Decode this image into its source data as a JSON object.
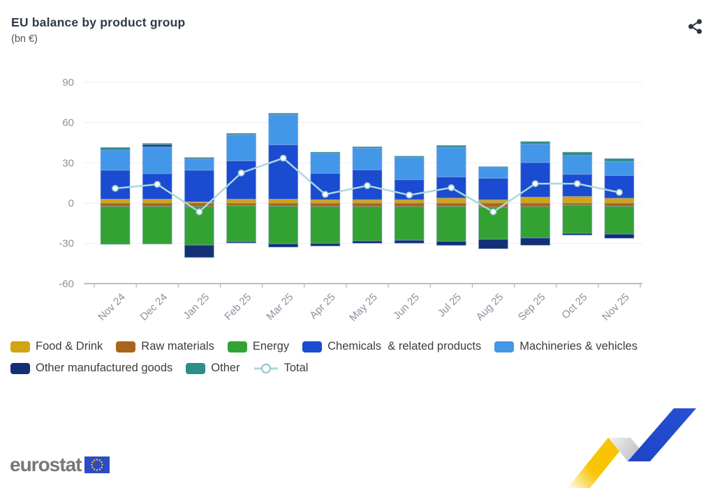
{
  "header": {
    "title": "EU balance by product group",
    "subtitle": "(bn €)"
  },
  "footer": {
    "logo_text": "eurostat"
  },
  "chart_data": {
    "type": "bar",
    "stacked": true,
    "title": "EU balance by product group",
    "ylabel": "bn €",
    "ylim": [
      -60,
      90
    ],
    "yticks": [
      90,
      60,
      30,
      0,
      -30,
      -60
    ],
    "grid": "horizontal",
    "legend_position": "bottom",
    "categories": [
      "Nov 24",
      "Dec 24",
      "Jan 25",
      "Feb 25",
      "Mar 25",
      "Apr 25",
      "May 25",
      "Jun 25",
      "Jul 25",
      "Aug 25",
      "Sep 25",
      "Oct 25",
      "Nov 25"
    ],
    "series": [
      {
        "name": "Food & Drink",
        "color": "#d2a412",
        "values": [
          3,
          3,
          1,
          3,
          3,
          2.6,
          2.6,
          2.6,
          3.8,
          2.5,
          4.5,
          5,
          3.7
        ]
      },
      {
        "name": "Raw materials",
        "color": "#aa651c",
        "values": [
          -2.5,
          -2.5,
          -2.5,
          -2,
          -2.3,
          -2.6,
          -2.6,
          -2.6,
          -2.5,
          -3,
          -2.6,
          -1.5,
          -2.4
        ]
      },
      {
        "name": "Energy",
        "color": "#34a233",
        "values": [
          -28.2,
          -28,
          -28.8,
          -26.7,
          -28,
          -27.4,
          -25.6,
          -25.1,
          -26,
          -24,
          -23.4,
          -21,
          -20.7
        ]
      },
      {
        "name": "Chemicals  & related products",
        "color": "#1a4bd1",
        "values": [
          21.5,
          19,
          23.5,
          28.5,
          40.5,
          19.6,
          22.2,
          14.9,
          15.7,
          16,
          25.7,
          16.5,
          16.9
        ]
      },
      {
        "name": "Machineries & vehicles",
        "color": "#4397e8",
        "values": [
          15,
          20,
          8.5,
          19.5,
          22.5,
          14.8,
          16.2,
          16.5,
          22,
          8,
          13.8,
          14,
          10.5
        ]
      },
      {
        "name": "Other manufactured goods",
        "color": "#133076",
        "values": [
          0,
          1.5,
          -9.2,
          -1,
          -2.5,
          -2,
          -1.7,
          -2.2,
          -3,
          -7,
          -5.4,
          -1.3,
          -3.1
        ]
      },
      {
        "name": "Other",
        "color": "#2d8d89",
        "values": [
          2,
          1,
          1,
          1,
          1,
          1,
          1,
          1,
          1.5,
          0.7,
          1.9,
          2.5,
          2.1
        ]
      }
    ],
    "line_series": {
      "name": "Total",
      "color": "#abd7dc",
      "marker_stroke": "#93c7cf",
      "values": [
        11,
        14,
        -6.5,
        22.5,
        33.5,
        6.5,
        13,
        6,
        11.5,
        -6.5,
        14.5,
        14.5,
        8
      ]
    },
    "colors": {
      "grid": "#e9edf7",
      "axis": "#a6a9ae",
      "axis_text": "#8d929c",
      "bar_border": "rgba(150,172,222,0.5)"
    }
  }
}
